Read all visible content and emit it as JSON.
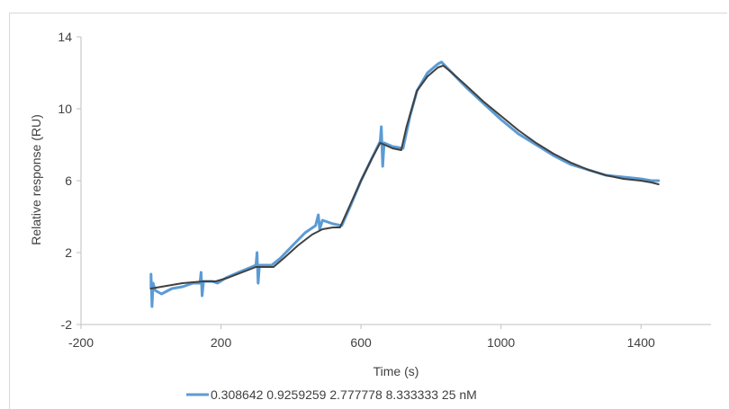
{
  "chart_data": {
    "type": "line",
    "xlabel": "Time (s)",
    "ylabel": "Relative response (RU)",
    "xlim": [
      -200,
      1600
    ],
    "ylim": [
      -2,
      14
    ],
    "xticks": [
      -200,
      200,
      600,
      1000,
      1400
    ],
    "yticks": [
      -2,
      2,
      6,
      10,
      14
    ],
    "xtick_labels": [
      "-200",
      "200",
      "600",
      "1000",
      "1400"
    ],
    "ytick_labels": [
      "-2",
      "2",
      "6",
      "10",
      "14"
    ],
    "grid": false,
    "legend_position": "bottom",
    "legend_label": "0.308642  0.9259259  2.777778  8.333333  25 nM",
    "colors": {
      "measured": "#5b9bd5",
      "fit": "#404040",
      "axis": "#bfbfbf",
      "text": "#404040"
    },
    "series": [
      {
        "name": "0.308642  0.9259259  2.777778  8.333333  25 nM",
        "color": "#5b9bd5",
        "points": [
          [
            0,
            0.0
          ],
          [
            0,
            0.8
          ],
          [
            3,
            -1.0
          ],
          [
            6,
            0.3
          ],
          [
            12,
            -0.1
          ],
          [
            30,
            -0.3
          ],
          [
            60,
            0.0
          ],
          [
            90,
            0.1
          ],
          [
            120,
            0.3
          ],
          [
            140,
            0.3
          ],
          [
            143,
            0.9
          ],
          [
            146,
            -0.4
          ],
          [
            150,
            0.4
          ],
          [
            175,
            0.4
          ],
          [
            190,
            0.3
          ],
          [
            215,
            0.6
          ],
          [
            250,
            0.9
          ],
          [
            300,
            1.3
          ],
          [
            303,
            2.0
          ],
          [
            306,
            0.3
          ],
          [
            310,
            1.3
          ],
          [
            345,
            1.3
          ],
          [
            370,
            1.7
          ],
          [
            400,
            2.3
          ],
          [
            440,
            3.1
          ],
          [
            470,
            3.5
          ],
          [
            478,
            4.1
          ],
          [
            482,
            3.3
          ],
          [
            490,
            3.8
          ],
          [
            520,
            3.6
          ],
          [
            545,
            3.5
          ],
          [
            570,
            4.6
          ],
          [
            600,
            6.0
          ],
          [
            630,
            7.2
          ],
          [
            655,
            8.2
          ],
          [
            658,
            9.0
          ],
          [
            662,
            6.8
          ],
          [
            666,
            8.1
          ],
          [
            690,
            7.9
          ],
          [
            720,
            7.8
          ],
          [
            740,
            9.6
          ],
          [
            760,
            11.0
          ],
          [
            790,
            12.0
          ],
          [
            820,
            12.5
          ],
          [
            830,
            12.6
          ],
          [
            860,
            12.0
          ],
          [
            900,
            11.2
          ],
          [
            950,
            10.3
          ],
          [
            1000,
            9.4
          ],
          [
            1050,
            8.6
          ],
          [
            1100,
            8.0
          ],
          [
            1150,
            7.4
          ],
          [
            1200,
            6.9
          ],
          [
            1250,
            6.6
          ],
          [
            1300,
            6.3
          ],
          [
            1350,
            6.2
          ],
          [
            1400,
            6.1
          ],
          [
            1430,
            6.0
          ],
          [
            1450,
            6.0
          ]
        ]
      },
      {
        "name": "",
        "color": "#404040",
        "points": [
          [
            0,
            0.0
          ],
          [
            30,
            0.1
          ],
          [
            60,
            0.2
          ],
          [
            90,
            0.3
          ],
          [
            120,
            0.35
          ],
          [
            150,
            0.4
          ],
          [
            185,
            0.4
          ],
          [
            220,
            0.6
          ],
          [
            260,
            0.9
          ],
          [
            300,
            1.2
          ],
          [
            330,
            1.2
          ],
          [
            350,
            1.2
          ],
          [
            380,
            1.7
          ],
          [
            420,
            2.4
          ],
          [
            460,
            3.0
          ],
          [
            490,
            3.3
          ],
          [
            520,
            3.4
          ],
          [
            540,
            3.4
          ],
          [
            570,
            4.7
          ],
          [
            600,
            6.0
          ],
          [
            630,
            7.2
          ],
          [
            655,
            8.1
          ],
          [
            690,
            7.8
          ],
          [
            715,
            7.7
          ],
          [
            730,
            9.0
          ],
          [
            760,
            11.0
          ],
          [
            790,
            11.8
          ],
          [
            820,
            12.3
          ],
          [
            835,
            12.4
          ],
          [
            860,
            12.0
          ],
          [
            900,
            11.3
          ],
          [
            950,
            10.4
          ],
          [
            1000,
            9.6
          ],
          [
            1050,
            8.8
          ],
          [
            1100,
            8.1
          ],
          [
            1150,
            7.5
          ],
          [
            1200,
            7.0
          ],
          [
            1250,
            6.6
          ],
          [
            1300,
            6.3
          ],
          [
            1350,
            6.1
          ],
          [
            1400,
            6.0
          ],
          [
            1430,
            5.9
          ],
          [
            1450,
            5.8
          ]
        ]
      }
    ]
  }
}
